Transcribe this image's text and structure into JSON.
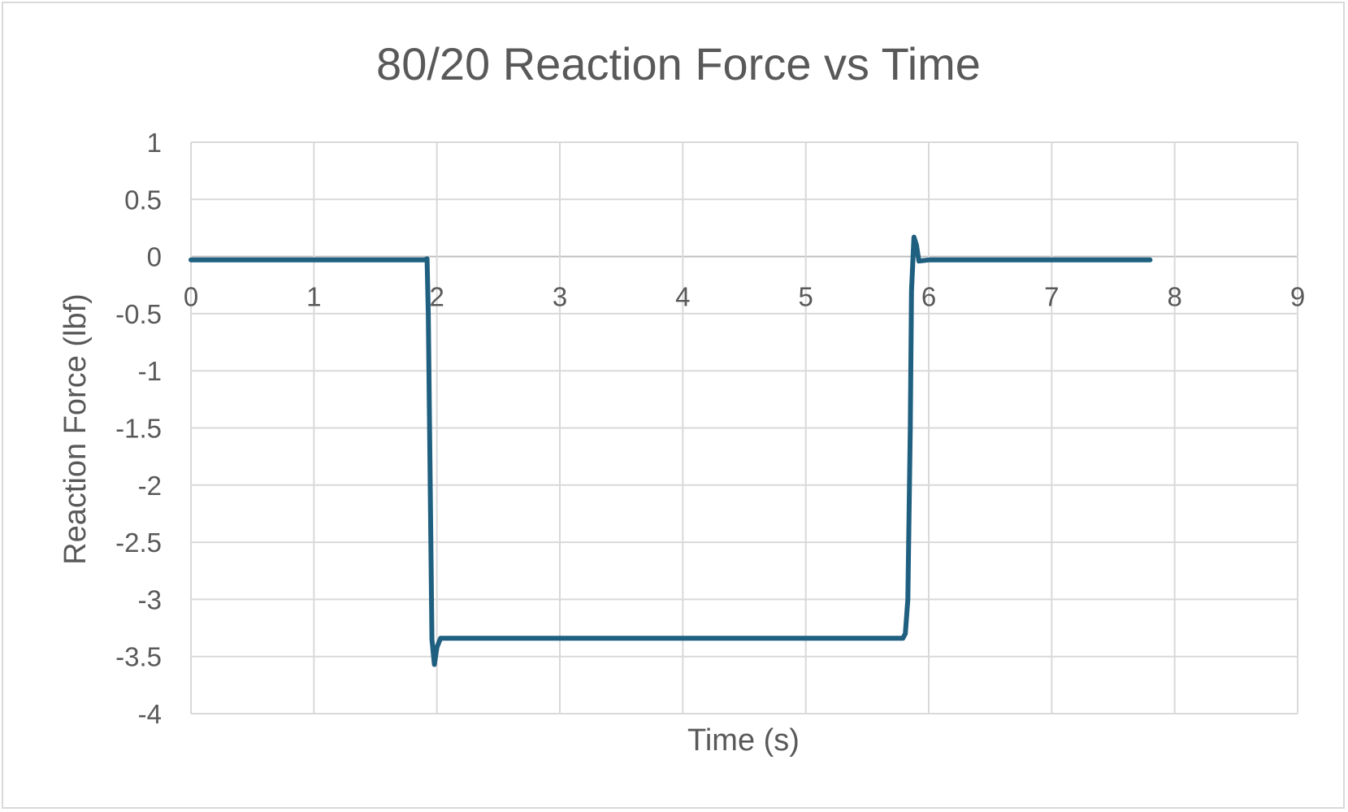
{
  "chart_data": {
    "type": "line",
    "title": "80/20 Reaction Force vs Time",
    "xlabel": "Time (s)",
    "ylabel": "Reaction Force (lbf)",
    "xlim": [
      0,
      9
    ],
    "ylim": [
      -4,
      1
    ],
    "x_ticks": [
      "0",
      "1",
      "2",
      "3",
      "4",
      "5",
      "6",
      "7",
      "8",
      "9"
    ],
    "y_ticks": [
      "1",
      "0.5",
      "0",
      "-0.5",
      "-1",
      "-1.5",
      "-2",
      "-2.5",
      "-3",
      "-3.5",
      "-4"
    ],
    "grid": true,
    "legend": "none",
    "series": [
      {
        "color": "#1f5f7f",
        "x": [
          0,
          1.0,
          1.9,
          1.92,
          1.93,
          1.96,
          1.98,
          2.0,
          2.03,
          3.0,
          4.0,
          5.0,
          5.79,
          5.81,
          5.83,
          5.85,
          5.86,
          5.88,
          5.9,
          5.92,
          6.0,
          7.0,
          7.8
        ],
        "y": [
          -0.03,
          -0.03,
          -0.03,
          -0.02,
          -0.5,
          -3.35,
          -3.57,
          -3.42,
          -3.34,
          -3.34,
          -3.34,
          -3.34,
          -3.34,
          -3.3,
          -3.0,
          -1.5,
          -0.3,
          0.17,
          0.1,
          -0.04,
          -0.03,
          -0.03,
          -0.03
        ]
      }
    ]
  }
}
